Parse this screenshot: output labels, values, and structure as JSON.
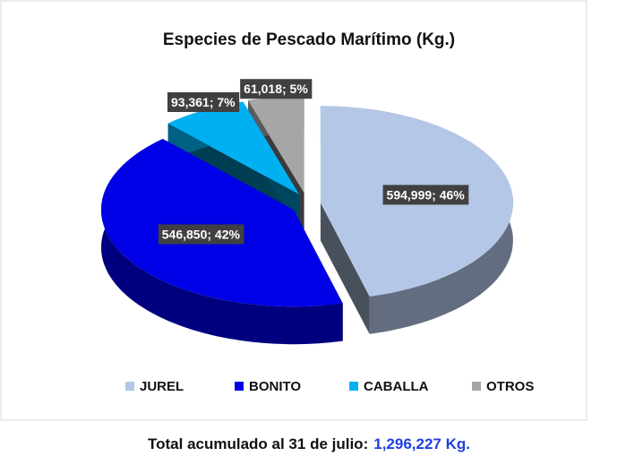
{
  "chart_data": {
    "type": "pie3d",
    "title": "Especies de Pescado Marítimo (Kg.)",
    "categories": [
      "JUREL",
      "BONITO",
      "CABALLA",
      "OTROS"
    ],
    "values": [
      594999,
      546850,
      93361,
      61018
    ],
    "value_labels": [
      "594,999; 46%",
      "546,850; 42%",
      "93,361; 7%",
      "61,018; 5%"
    ],
    "colors": [
      "#b4c7e7",
      "#0000e6",
      "#00b0f0",
      "#a6a6a6"
    ],
    "legend": "bottom",
    "annotation": {
      "text": "Total acumulado al 31 de julio:",
      "total": "1,296,227 Kg."
    }
  }
}
